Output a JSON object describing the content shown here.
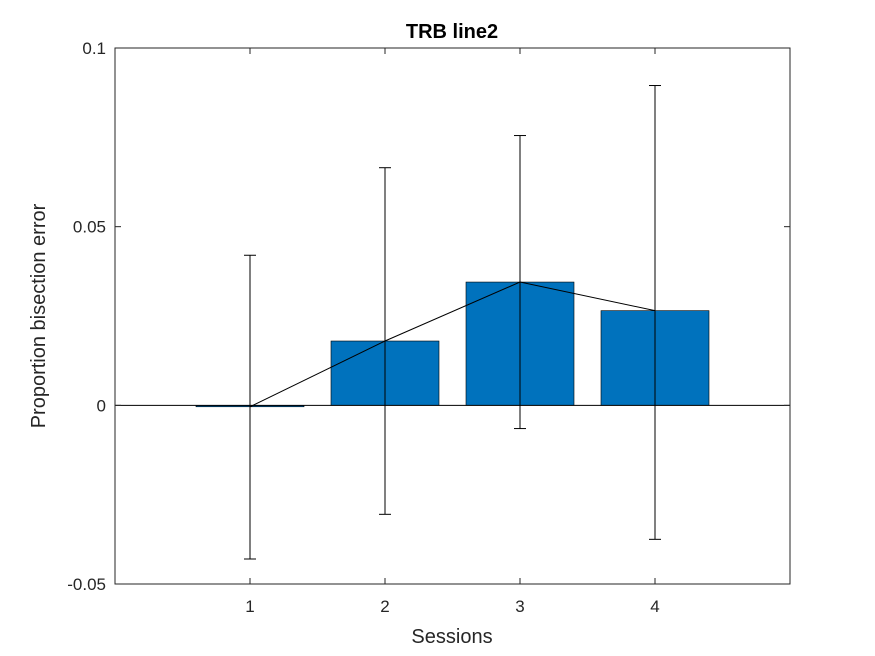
{
  "chart_data": {
    "type": "bar",
    "title": "TRB line2",
    "xlabel": "Sessions",
    "ylabel": "Proportion bisection error",
    "categories": [
      "1",
      "2",
      "3",
      "4"
    ],
    "values": [
      -0.0004,
      0.018,
      0.0345,
      0.0265
    ],
    "error_upper": [
      0.042,
      0.0665,
      0.0755,
      0.0895
    ],
    "error_lower": [
      -0.043,
      -0.0305,
      -0.0065,
      -0.0375
    ],
    "xlim": [
      0,
      5
    ],
    "ylim": [
      -0.05,
      0.1
    ],
    "yticks": [
      -0.05,
      0,
      0.05,
      0.1
    ],
    "ytick_labels": [
      "-0.05",
      "0",
      "0.05",
      "0.1"
    ],
    "bar_color": "#0072BD",
    "line_color": "#000000",
    "grid": false,
    "legend": "none"
  }
}
